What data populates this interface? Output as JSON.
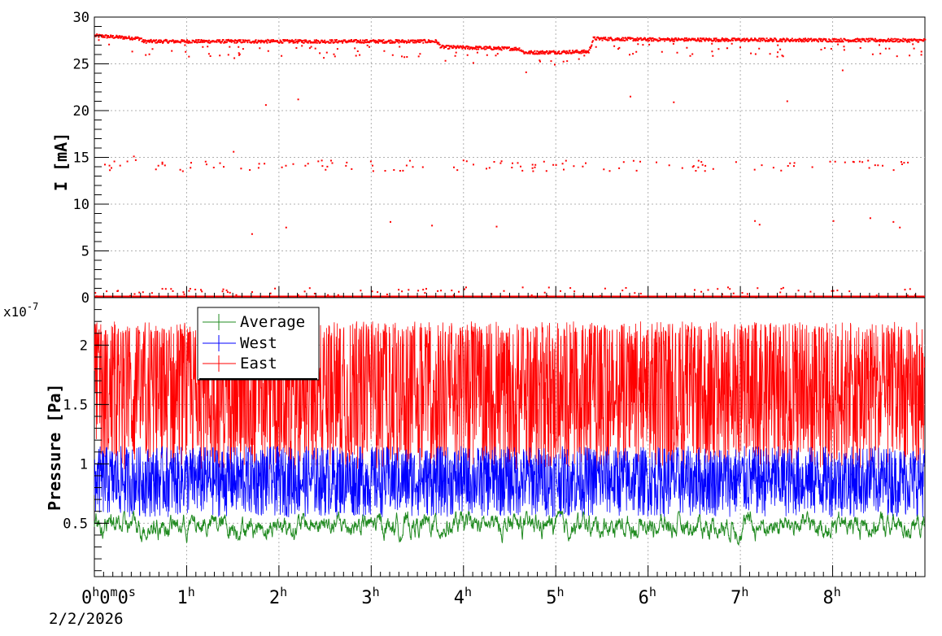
{
  "chart_data": [
    {
      "type": "scatter",
      "ylabel": "I [mA]",
      "xlim_hours": [
        0,
        9
      ],
      "ylim": [
        0,
        30
      ],
      "yticks": [
        "0",
        "5",
        "10",
        "15",
        "20",
        "25",
        "30"
      ],
      "grid": true,
      "series": [
        {
          "color": "#ff0000",
          "baseline_profile": [
            {
              "t": 0.0,
              "v": 28.0
            },
            {
              "t": 0.5,
              "v": 27.7
            },
            {
              "t": 0.51,
              "v": 27.4
            },
            {
              "t": 3.7,
              "v": 27.4
            },
            {
              "t": 3.75,
              "v": 26.8
            },
            {
              "t": 4.6,
              "v": 26.6
            },
            {
              "t": 4.65,
              "v": 26.2
            },
            {
              "t": 5.35,
              "v": 26.3
            },
            {
              "t": 5.4,
              "v": 27.7
            },
            {
              "t": 6.0,
              "v": 27.6
            },
            {
              "t": 9.0,
              "v": 27.5
            }
          ],
          "zero_band": 0.0,
          "mid_band": 14.0,
          "outliers": [
            {
              "t": 1.85,
              "v": 20.6
            },
            {
              "t": 2.2,
              "v": 21.2
            },
            {
              "t": 5.8,
              "v": 21.5
            },
            {
              "t": 6.27,
              "v": 20.9
            },
            {
              "t": 7.5,
              "v": 21.0
            },
            {
              "t": 8.1,
              "v": 24.3
            },
            {
              "t": 4.67,
              "v": 24.1
            },
            {
              "t": 1.7,
              "v": 6.8
            },
            {
              "t": 2.07,
              "v": 7.5
            },
            {
              "t": 3.2,
              "v": 8.1
            },
            {
              "t": 3.65,
              "v": 7.7
            },
            {
              "t": 4.35,
              "v": 7.6
            },
            {
              "t": 7.2,
              "v": 7.8
            },
            {
              "t": 7.15,
              "v": 8.2
            },
            {
              "t": 8.0,
              "v": 8.2
            },
            {
              "t": 8.4,
              "v": 8.5
            },
            {
              "t": 8.65,
              "v": 8.1
            },
            {
              "t": 8.72,
              "v": 7.5
            },
            {
              "t": 1.5,
              "v": 15.6
            },
            {
              "t": 0.42,
              "v": 15.1
            }
          ]
        }
      ]
    },
    {
      "type": "line",
      "ylabel": "Pressure [Pa]",
      "y_exponent": "x10-7",
      "xlim_hours": [
        0,
        9
      ],
      "ylim": [
        0.05,
        2.4
      ],
      "yticks": [
        "0.5",
        "1",
        "1.5",
        "2"
      ],
      "xticks": [
        "0h0m0s",
        "1h",
        "2h",
        "3h",
        "4h",
        "5h",
        "6h",
        "7h",
        "8h"
      ],
      "date": "2/2/2026",
      "grid": true,
      "legend": {
        "position": "top-left",
        "entries": [
          "Average",
          "West",
          "East"
        ]
      },
      "series": [
        {
          "name": "Average",
          "color": "#228b22",
          "band_low": 0.32,
          "band_high": 0.62,
          "center": 0.48
        },
        {
          "name": "West",
          "color": "#0000ff",
          "band_low": 0.55,
          "band_high": 1.15,
          "center": 0.88
        },
        {
          "name": "East",
          "color": "#ff0000",
          "band_low": 0.95,
          "band_high": 2.15,
          "center": 1.6
        }
      ]
    }
  ]
}
